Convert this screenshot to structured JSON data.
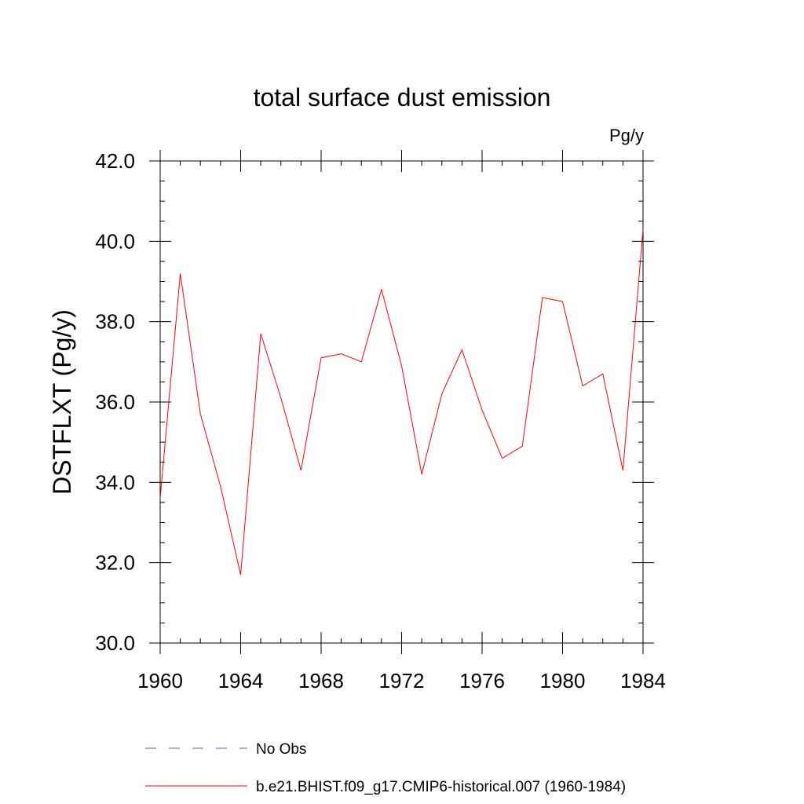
{
  "chart_data": {
    "type": "line",
    "title": "total surface dust emission",
    "units": "Pg/y",
    "ylabel": "DSTFLXT  (Pg/y)",
    "xlabel": "",
    "xlim": [
      1960,
      1984
    ],
    "ylim": [
      30,
      42
    ],
    "x_ticks": [
      1960,
      1964,
      1968,
      1972,
      1976,
      1980,
      1984
    ],
    "x_tick_labels": [
      "1960",
      "1964",
      "1968",
      "1972",
      "1976",
      "1980",
      "1984"
    ],
    "y_ticks": [
      30,
      32,
      34,
      36,
      38,
      40,
      42
    ],
    "y_tick_labels": [
      "30.0",
      "32.0",
      "34.0",
      "36.0",
      "38.0",
      "40.0",
      "42.0"
    ],
    "grid": false,
    "legend_position": "bottom",
    "legend": [
      {
        "label": "No Obs",
        "color": "#5a5ab4",
        "style": "dashed"
      },
      {
        "label": "b.e21.BHIST.f09_g17.CMIP6-historical.007 (1960-1984)",
        "color": "#ff0000",
        "style": "solid"
      }
    ],
    "series": [
      {
        "name": "b.e21.BHIST.f09_g17.CMIP6-historical.007 (1960-1984)",
        "color": "#ff0000",
        "x": [
          1960,
          1961,
          1962,
          1963,
          1964,
          1965,
          1966,
          1967,
          1968,
          1969,
          1970,
          1971,
          1972,
          1973,
          1974,
          1975,
          1976,
          1977,
          1978,
          1979,
          1980,
          1981,
          1982,
          1983,
          1984
        ],
        "values": [
          33.6,
          39.2,
          35.7,
          33.9,
          31.7,
          37.7,
          36.1,
          34.3,
          37.1,
          37.2,
          37.0,
          38.8,
          36.9,
          34.2,
          36.2,
          37.3,
          35.8,
          34.6,
          34.9,
          38.6,
          38.5,
          36.4,
          36.7,
          34.3,
          40.3
        ]
      }
    ]
  }
}
